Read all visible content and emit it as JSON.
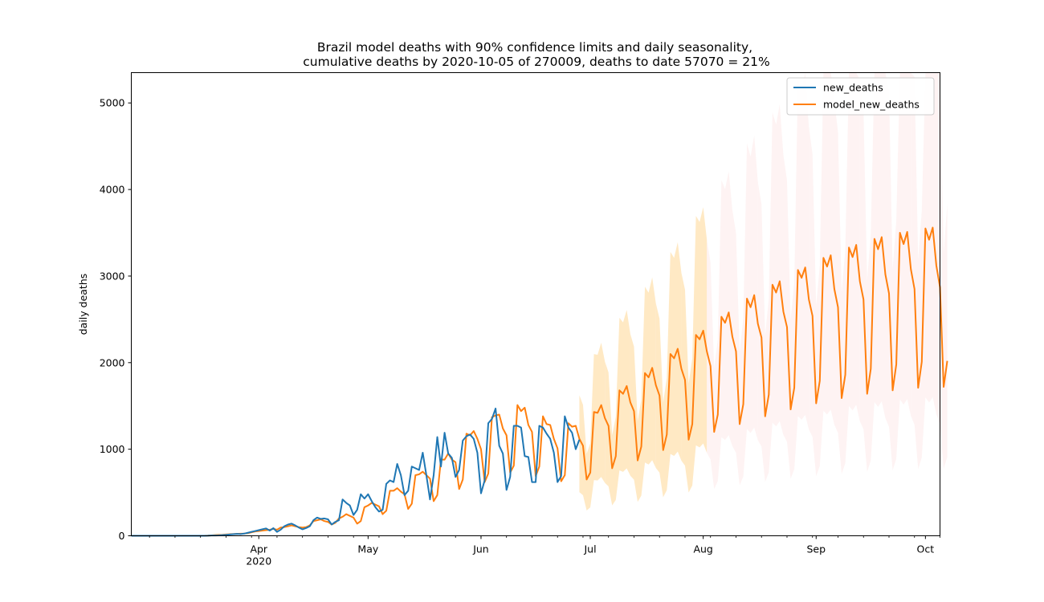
{
  "chart_data": {
    "type": "line",
    "title": "Brazil model deaths with 90% confidence limits and daily seasonality,",
    "subtitle": "cumulative deaths by 2020-10-05 of 270009, deaths to date 57070 = 21%",
    "xlabel": "",
    "ylabel": "daily deaths",
    "x_start": "2020-02-26",
    "x_end": "2020-10-05",
    "ylim": [
      0,
      5350
    ],
    "grid": false,
    "legend_position": "top-right",
    "y_ticks": [
      0,
      1000,
      2000,
      3000,
      4000,
      5000
    ],
    "x_ticks": [
      {
        "date": "2020-04-01",
        "label": "Apr",
        "sublabel": "2020"
      },
      {
        "date": "2020-05-01",
        "label": "May",
        "sublabel": ""
      },
      {
        "date": "2020-06-01",
        "label": "Jun",
        "sublabel": ""
      },
      {
        "date": "2020-07-01",
        "label": "Jul",
        "sublabel": ""
      },
      {
        "date": "2020-08-01",
        "label": "Aug",
        "sublabel": ""
      },
      {
        "date": "2020-09-01",
        "label": "Sep",
        "sublabel": ""
      },
      {
        "date": "2020-10-01",
        "label": "Oct",
        "sublabel": ""
      }
    ],
    "colors": {
      "new_deaths": "#1f77b4",
      "model_new_deaths": "#ff7f0e",
      "band_near": "#ffe2b0",
      "band_far": "#fdeaea"
    },
    "series": [
      {
        "name": "new_deaths",
        "start": "2020-02-26",
        "values": [
          0,
          0,
          0,
          0,
          0,
          0,
          0,
          0,
          0,
          0,
          0,
          0,
          0,
          0,
          0,
          0,
          0,
          0,
          0,
          0,
          0,
          1,
          3,
          4,
          5,
          8,
          11,
          15,
          19,
          22,
          20,
          25,
          35,
          45,
          55,
          65,
          75,
          85,
          60,
          88,
          45,
          70,
          110,
          130,
          140,
          120,
          95,
          75,
          90,
          110,
          180,
          210,
          195,
          200,
          190,
          130,
          160,
          180,
          420,
          380,
          350,
          240,
          300,
          480,
          430,
          480,
          400,
          330,
          280,
          300,
          600,
          640,
          620,
          830,
          700,
          470,
          520,
          800,
          780,
          760,
          960,
          700,
          420,
          700,
          1140,
          800,
          1190,
          950,
          900,
          680,
          760,
          1100,
          1150,
          1170,
          1120,
          960,
          490,
          640,
          1300,
          1350,
          1470,
          1040,
          950,
          530,
          680,
          1270,
          1270,
          1250,
          920,
          910,
          620,
          620,
          1270,
          1250,
          1180,
          1120,
          960,
          620,
          690,
          1380,
          1250,
          1190,
          1000,
          1110
        ]
      },
      {
        "name": "model_new_deaths",
        "start": "2020-02-26",
        "values": [
          0,
          0,
          0,
          0,
          0,
          0,
          0,
          0,
          0,
          0,
          0,
          0,
          0,
          0,
          0,
          0,
          0,
          0,
          0,
          0,
          0,
          2,
          5,
          8,
          10,
          12,
          15,
          18,
          20,
          22,
          24,
          26,
          30,
          40,
          50,
          55,
          60,
          65,
          70,
          80,
          70,
          95,
          100,
          110,
          120,
          110,
          100,
          95,
          100,
          120,
          170,
          180,
          190,
          170,
          160,
          130,
          150,
          200,
          220,
          250,
          230,
          210,
          140,
          170,
          330,
          350,
          380,
          360,
          340,
          250,
          290,
          520,
          520,
          550,
          510,
          480,
          310,
          370,
          700,
          710,
          740,
          700,
          660,
          400,
          470,
          880,
          880,
          950,
          880,
          850,
          540,
          650,
          1180,
          1160,
          1210,
          1120,
          1000,
          620,
          720,
          1370,
          1390,
          1400,
          1240,
          1160,
          730,
          810,
          1510,
          1440,
          1480,
          1280,
          1200,
          690,
          800,
          1380,
          1290,
          1280,
          1120,
          1010,
          630,
          700,
          1300,
          1260,
          1270,
          1120,
          1040,
          650,
          730,
          1430,
          1420,
          1510,
          1360,
          1270,
          780,
          920,
          1680,
          1640,
          1730,
          1540,
          1440,
          870,
          1030,
          1880,
          1830,
          1940,
          1740,
          1620,
          990,
          1170,
          2100,
          2050,
          2160,
          1930,
          1800,
          1110,
          1290,
          2320,
          2270,
          2370,
          2130,
          1960,
          1200,
          1400,
          2530,
          2460,
          2580,
          2300,
          2130,
          1290,
          1520,
          2740,
          2640,
          2780,
          2450,
          2290,
          1380,
          1630,
          2900,
          2810,
          2940,
          2590,
          2410,
          1460,
          1710,
          3070,
          2980,
          3100,
          2730,
          2540,
          1530,
          1790,
          3210,
          3110,
          3240,
          2850,
          2640,
          1590,
          1860,
          3330,
          3220,
          3360,
          2940,
          2730,
          1640,
          1930,
          3430,
          3310,
          3450,
          3020,
          2800,
          1680,
          1980,
          3500,
          3370,
          3510,
          3080,
          2850,
          1710,
          2010,
          3550,
          3420,
          3560,
          3120,
          2870,
          1720,
          2020
        ]
      }
    ],
    "confidence_band": {
      "level": "90%",
      "start": "2020-06-28",
      "lower_ratio": 0.45,
      "upper_ratio_start": 1.45,
      "upper_ratio_end": 1.9
    }
  }
}
